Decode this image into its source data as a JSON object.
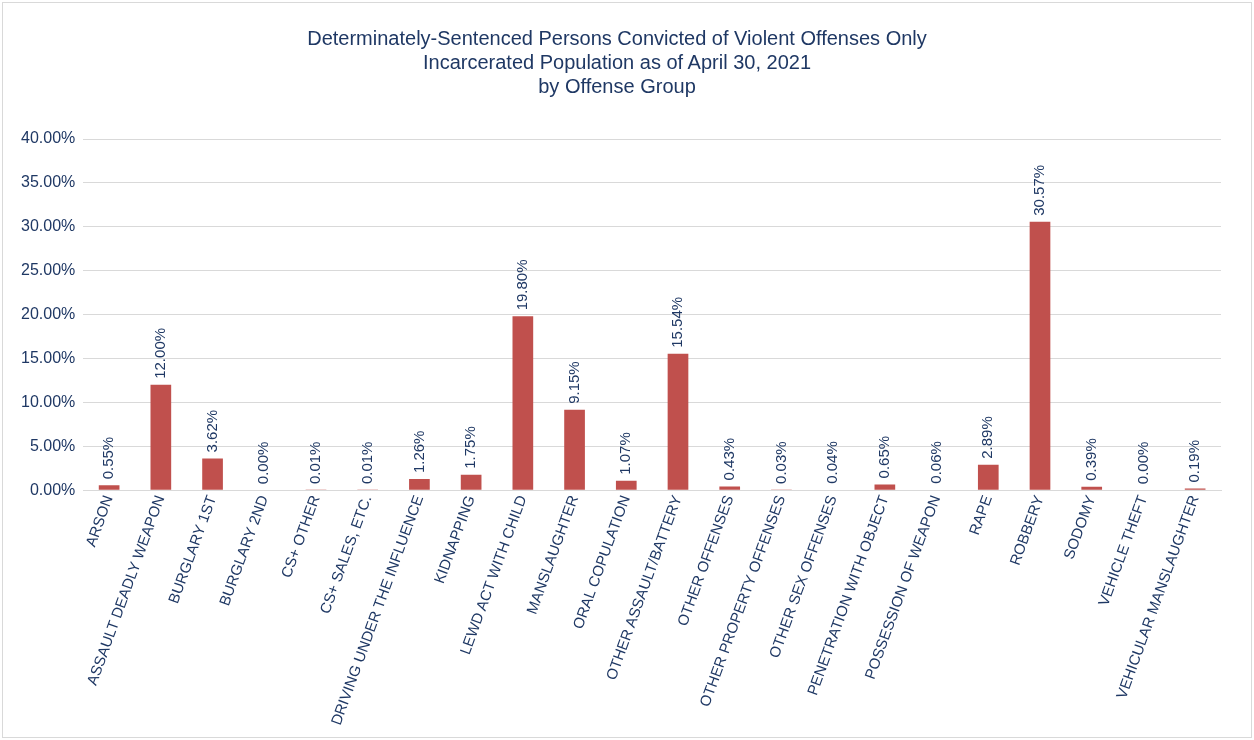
{
  "chart_data": {
    "type": "bar",
    "title": "Determinately-Sentenced Persons Convicted of Violent Offenses Only\nIncarcerated Population as of April 30, 2021\nby Offense Group",
    "categories": [
      "ARSON",
      "ASSAULT DEADLY WEAPON",
      "BURGLARY 1ST",
      "BURGLARY 2ND",
      "CS+ OTHER",
      "CS+ SALES, ETC.",
      "DRIVING UNDER THE INFLUENCE",
      "KIDNAPPING",
      "LEWD ACT WITH CHILD",
      "MANSLAUGHTER",
      "ORAL COPULATION",
      "OTHER ASSAULT/BATTERY",
      "OTHER OFFENSES",
      "OTHER PROPERTY OFFENSES",
      "OTHER SEX OFFENSES",
      "PENETRATION WITH OBJECT",
      "POSSESSION OF WEAPON",
      "RAPE",
      "ROBBERY",
      "SODOMY",
      "VEHICLE THEFT",
      "VEHICULAR MANSLAUGHTER"
    ],
    "values": [
      0.55,
      12.0,
      3.62,
      0.0,
      0.01,
      0.01,
      1.26,
      1.75,
      19.8,
      9.15,
      1.07,
      15.54,
      0.43,
      0.03,
      0.04,
      0.65,
      0.06,
      2.89,
      30.57,
      0.39,
      0.0,
      0.19
    ],
    "value_labels": [
      "0.55%",
      "12.00%",
      "3.62%",
      "0.00%",
      "0.01%",
      "0.01%",
      "1.26%",
      "1.75%",
      "19.80%",
      "9.15%",
      "1.07%",
      "15.54%",
      "0.43%",
      "0.03%",
      "0.04%",
      "0.65%",
      "0.06%",
      "2.89%",
      "30.57%",
      "0.39%",
      "0.00%",
      "0.19%"
    ],
    "color": "#c0504d",
    "ylim": [
      0,
      40
    ],
    "yticks": [
      {
        "value": 0,
        "label": "0.00%"
      },
      {
        "value": 5,
        "label": "5.00%"
      },
      {
        "value": 10,
        "label": "10.00%"
      },
      {
        "value": 15,
        "label": "15.00%"
      },
      {
        "value": 20,
        "label": "20.00%"
      },
      {
        "value": 25,
        "label": "25.00%"
      },
      {
        "value": 30,
        "label": "30.00%"
      },
      {
        "value": 35,
        "label": "35.00%"
      },
      {
        "value": 40,
        "label": "40.00%"
      }
    ],
    "grid": "y"
  }
}
